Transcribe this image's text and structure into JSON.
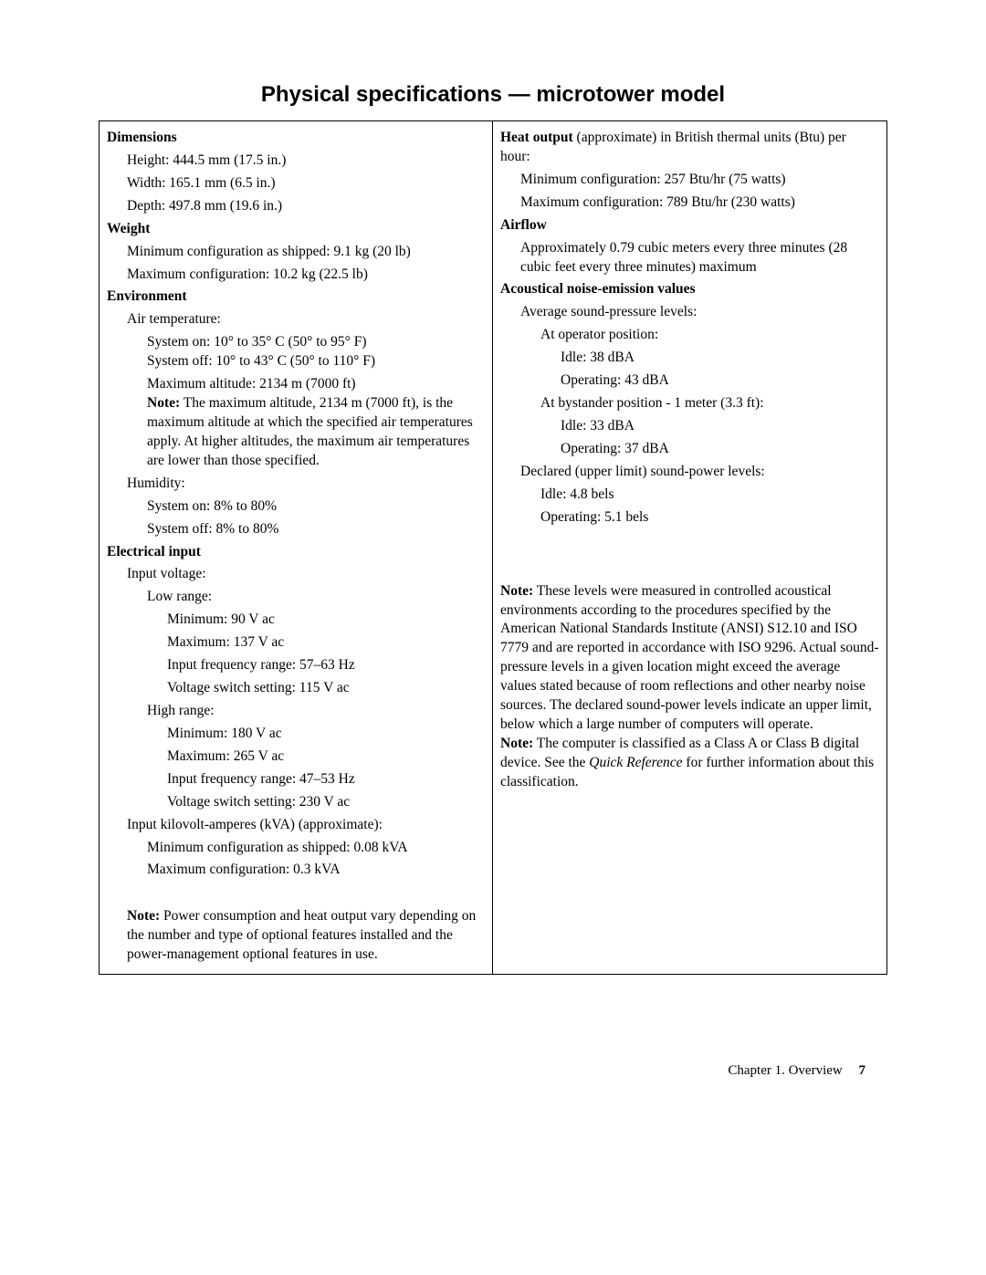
{
  "title": "Physical specifications — microtower model",
  "left": {
    "dimensions": {
      "heading": "Dimensions",
      "height": "Height: 444.5 mm (17.5 in.)",
      "width": "Width: 165.1 mm (6.5 in.)",
      "depth": "Depth: 497.8 mm (19.6 in.)"
    },
    "weight": {
      "heading": "Weight",
      "min": "Minimum configuration as shipped: 9.1 kg (20 lb)",
      "max": "Maximum configuration: 10.2 kg (22.5 lb)"
    },
    "environment": {
      "heading": "Environment",
      "airtemp": "Air temperature:",
      "sys_on": "System on: 10° to 35° C (50° to 95° F)",
      "sys_off": "System off: 10° to 43° C (50° to 110° F)",
      "max_alt": "Maximum altitude: 2134 m (7000 ft)",
      "note_label": "Note:",
      "note_text": " The maximum altitude, 2134 m (7000 ft), is the maximum altitude at which the specified air temperatures apply. At higher altitudes, the maximum air temperatures are lower than those specified.",
      "humidity": "Humidity:",
      "h_on": "System on: 8% to 80%",
      "h_off": "System off: 8% to 80%"
    },
    "electrical": {
      "heading": "Electrical input",
      "input_voltage": "Input voltage:",
      "low_range": "Low range:",
      "low_min": "Minimum: 90 V ac",
      "low_max": "Maximum: 137 V ac",
      "low_freq": "Input frequency range: 57–63 Hz",
      "low_switch": "Voltage switch setting: 115 V ac",
      "high_range": "High range:",
      "high_min": "Minimum: 180 V ac",
      "high_max": "Maximum: 265 V ac",
      "high_freq": "Input frequency range: 47–53 Hz",
      "high_switch": "Voltage switch setting: 230 V ac",
      "kva": "Input kilovolt-amperes (kVA) (approximate):",
      "kva_min": "Minimum configuration as shipped: 0.08 kVA",
      "kva_max": "Maximum configuration: 0.3 kVA",
      "note_label": "Note:",
      "note_text": " Power consumption and heat output vary depending on the number and type of optional features installed and the power-management optional features in use."
    }
  },
  "right": {
    "heat": {
      "heading": "Heat output",
      "heading_rest": " (approximate) in British thermal units (Btu) per hour:",
      "min": "Minimum configuration: 257 Btu/hr (75 watts)",
      "max": "Maximum configuration: 789 Btu/hr (230 watts)"
    },
    "airflow": {
      "heading": "Airflow",
      "text": "Approximately 0.79 cubic meters every three minutes (28 cubic feet every three minutes) maximum"
    },
    "acoustic": {
      "heading": "Acoustical noise-emission values",
      "avg": "Average sound-pressure levels:",
      "op_pos": "At operator position:",
      "op_idle": "Idle: 38 dBA",
      "op_oper": "Operating: 43 dBA",
      "by_pos": "At bystander position - 1 meter (3.3 ft):",
      "by_idle": "Idle: 33 dBA",
      "by_oper": "Operating: 37 dBA",
      "declared": "Declared (upper limit) sound-power levels:",
      "d_idle": "Idle: 4.8 bels",
      "d_oper": "Operating: 5.1 bels",
      "note1_label": "Note:",
      "note1_text": " These levels were measured in controlled acoustical environments according to the procedures specified by the American National Standards Institute (ANSI) S12.10 and ISO 7779 and are reported in accordance with ISO 9296. Actual sound-pressure levels in a given location might exceed the average values stated because of room reflections and other nearby noise sources. The declared sound-power levels indicate an upper limit, below which a large number of computers will operate.",
      "note2_label": "Note:",
      "note2_a": " The computer is classified as a Class A or Class B digital device. See the ",
      "note2_italic": "Quick Reference",
      "note2_b": " for further information about this classification."
    }
  },
  "footer": {
    "chapter": "Chapter 1. Overview",
    "page": "7"
  }
}
